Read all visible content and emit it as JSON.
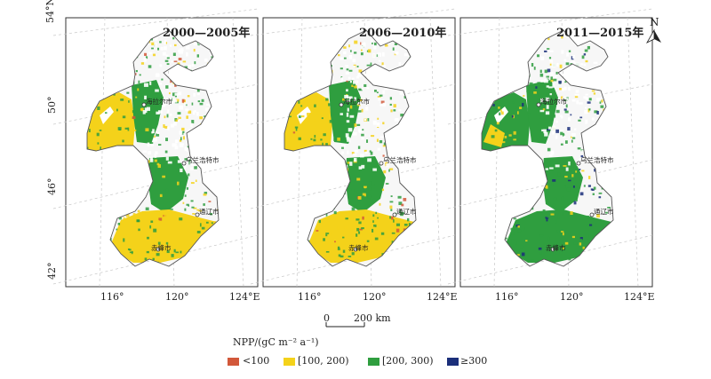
{
  "panels": [
    {
      "title": "2000—2005年",
      "variant": "a"
    },
    {
      "title": "2006—2010年",
      "variant": "b"
    },
    {
      "title": "2011—2015年",
      "variant": "c"
    }
  ],
  "axes": {
    "lat_labels": [
      "54°N",
      "50°",
      "46°",
      "42°"
    ],
    "lon_labels": [
      "116°",
      "120°",
      "124°E"
    ]
  },
  "cities": [
    "海拉尔市",
    "乌兰浩特市",
    "通辽市",
    "赤峰市"
  ],
  "north_arrow": "N",
  "scale_bar": {
    "zero": "0",
    "end": "200 km"
  },
  "legend": {
    "title": "NPP/(gC m⁻² a⁻¹)",
    "items": [
      {
        "label": "<100",
        "color": "#d2583a"
      },
      {
        "label": "[100, 200)",
        "color": "#f4d21a"
      },
      {
        "label": "[200, 300)",
        "color": "#2f9e3f"
      },
      {
        "label": "≥300",
        "color": "#1b2f7a"
      }
    ]
  }
}
